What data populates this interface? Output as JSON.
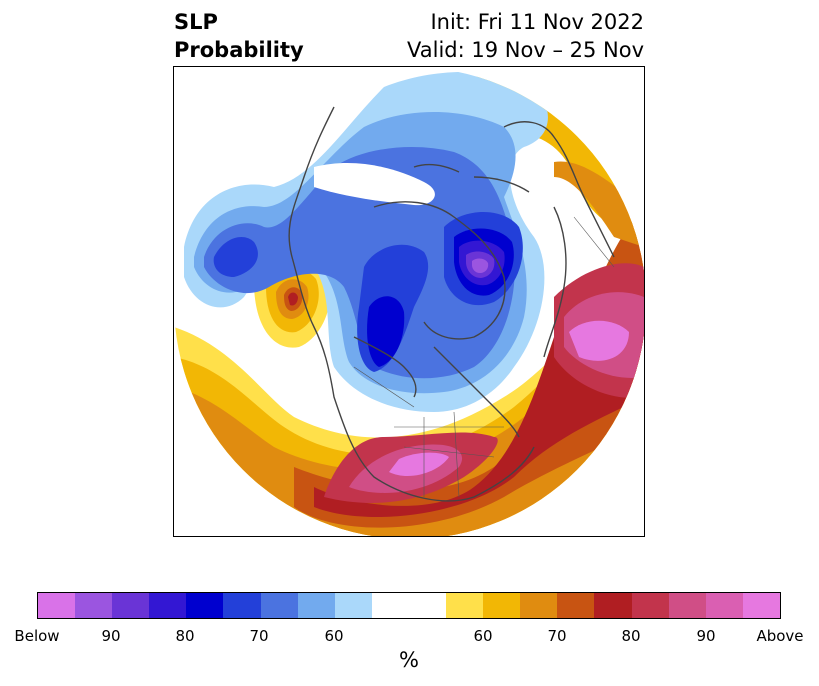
{
  "title": {
    "left_line1": "SLP",
    "left_line2": "Probability",
    "right_line1": "Init: Fri 11 Nov 2022",
    "right_line2": "Valid: 19 Nov – 25 Nov"
  },
  "colorbar": {
    "label": "%",
    "ticks": [
      "Below",
      "90",
      "80",
      "70",
      "60",
      "60",
      "70",
      "80",
      "90",
      "Above"
    ],
    "colors": [
      "#d972e8",
      "#9b55e0",
      "#6a34d6",
      "#3317d3",
      "#0000cf",
      "#2340d9",
      "#4b73e0",
      "#72aaee",
      "#aad8fa",
      "#ffffff",
      "#ffe04a",
      "#f2b705",
      "#e08c10",
      "#c85412",
      "#b01e22",
      "#c2344c",
      "#d04e86",
      "#da5fb2",
      "#e678e0"
    ]
  },
  "map": {
    "region": "Northern Hemisphere polar stereographic",
    "colors": {
      "below_90": "#9b55e0",
      "below_80": "#0000cf",
      "below_70": "#2340d9",
      "below_60": "#4b73e0",
      "below_50": "#72aaee",
      "below_40": "#aad8fa",
      "above_40": "#ffe04a",
      "above_50": "#f2b705",
      "above_60": "#e08c10",
      "above_70": "#c85412",
      "above_80": "#b01e22",
      "above_90": "#d04e86",
      "above_max": "#e678e0",
      "coastline": "#444444"
    }
  }
}
